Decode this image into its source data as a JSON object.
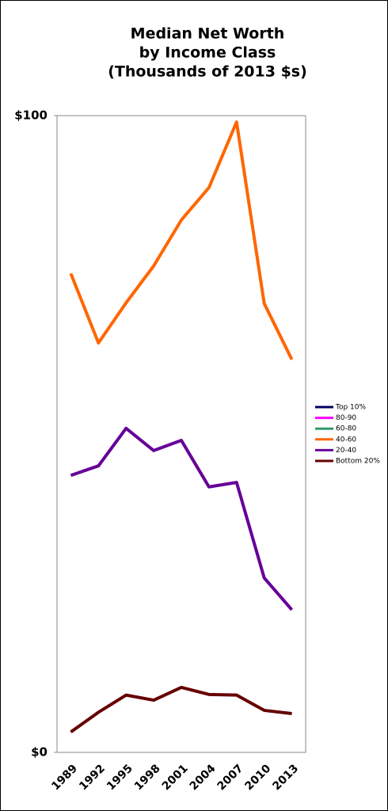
{
  "chart_data": {
    "type": "line",
    "title": [
      "Median Net Worth",
      "by Income Class",
      "(Thousands of 2013 $s)"
    ],
    "categories": [
      "1989",
      "1992",
      "1995",
      "1998",
      "2001",
      "2004",
      "2007",
      "2010",
      "2013"
    ],
    "series": [
      {
        "name": "Top 10%",
        "color": "#000066",
        "values": [
          null,
          null,
          null,
          null,
          null,
          null,
          null,
          null,
          null
        ]
      },
      {
        "name": "80-90",
        "color": "#ff00ff",
        "values": [
          null,
          null,
          null,
          null,
          null,
          null,
          null,
          null,
          null
        ]
      },
      {
        "name": "60-80",
        "color": "#339966",
        "values": [
          null,
          null,
          null,
          null,
          null,
          null,
          null,
          null,
          null
        ]
      },
      {
        "name": "40-60",
        "color": "#ff6600",
        "values": [
          75.2,
          64.3,
          70.6,
          76.4,
          83.6,
          88.7,
          99.0,
          70.5,
          61.7
        ]
      },
      {
        "name": "20-40",
        "color": "#660099",
        "values": [
          43.5,
          45.0,
          50.9,
          47.4,
          49.0,
          41.7,
          42.4,
          27.4,
          22.4
        ]
      },
      {
        "name": "Bottom 20%",
        "color": "#660000",
        "values": [
          3.2,
          6.3,
          9.0,
          8.2,
          10.2,
          9.1,
          9.0,
          6.6,
          6.1
        ]
      }
    ],
    "ylim": [
      0,
      100
    ],
    "yticks": [
      {
        "value": 0,
        "label": "$0"
      },
      {
        "value": 100,
        "label": "$100"
      }
    ],
    "grid": false,
    "legend": "right"
  }
}
